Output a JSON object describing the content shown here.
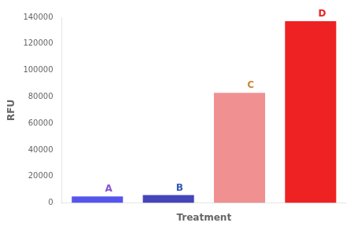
{
  "chart_data": {
    "type": "bar",
    "categories": [
      null,
      null,
      null,
      null
    ],
    "values": [
      5000,
      6000,
      83000,
      137000
    ],
    "colors": [
      "#5555ee",
      "#4444bb",
      "#f09090",
      "#ee2222"
    ],
    "annotations": [
      {
        "text": "A",
        "color": "#8855cc"
      },
      {
        "text": "B",
        "color": "#3355bb"
      },
      {
        "text": "C",
        "color": "#cc8833"
      },
      {
        "text": "D",
        "color": "#ee2222"
      }
    ],
    "xlabel": "Treatment",
    "ylabel": "RFU",
    "ylim": [
      0,
      140000
    ],
    "yticks": [
      0,
      20000,
      40000,
      60000,
      80000,
      100000,
      120000,
      140000
    ],
    "grid": false,
    "tick_labels": "y"
  }
}
